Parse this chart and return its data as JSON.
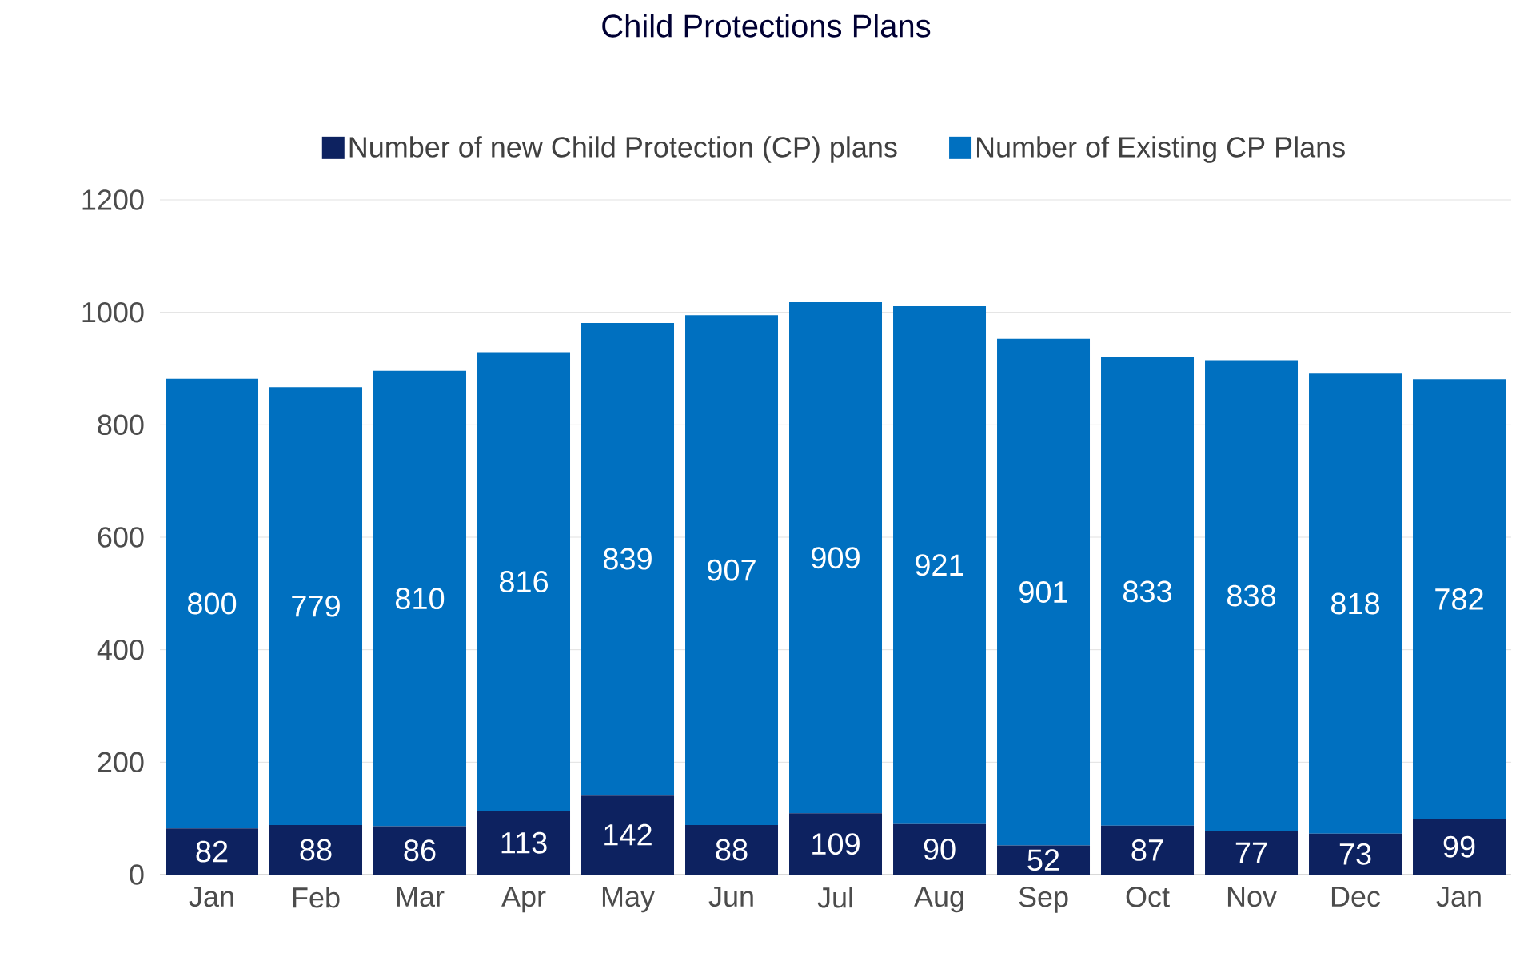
{
  "chart_data": {
    "type": "bar",
    "stacked": true,
    "title": "Child Protections Plans",
    "categories": [
      "Jan",
      "Feb",
      "Mar",
      "Apr",
      "May",
      "Jun",
      "Jul",
      "Aug",
      "Sep",
      "Oct",
      "Nov",
      "Dec",
      "Jan"
    ],
    "series": [
      {
        "name": "Number of new Child Protection (CP) plans",
        "color": "#0d2260",
        "values": [
          82,
          88,
          86,
          113,
          142,
          88,
          109,
          90,
          52,
          87,
          77,
          73,
          99
        ]
      },
      {
        "name": "Number of Existing CP Plans",
        "color": "#0070c0",
        "values": [
          800,
          779,
          810,
          816,
          839,
          907,
          909,
          921,
          901,
          833,
          838,
          818,
          782
        ]
      }
    ],
    "ylim": [
      0,
      1200
    ],
    "yticks": [
      0,
      200,
      400,
      600,
      800,
      1000,
      1200
    ],
    "grid": "y",
    "legend": "top",
    "data_labels": true
  }
}
